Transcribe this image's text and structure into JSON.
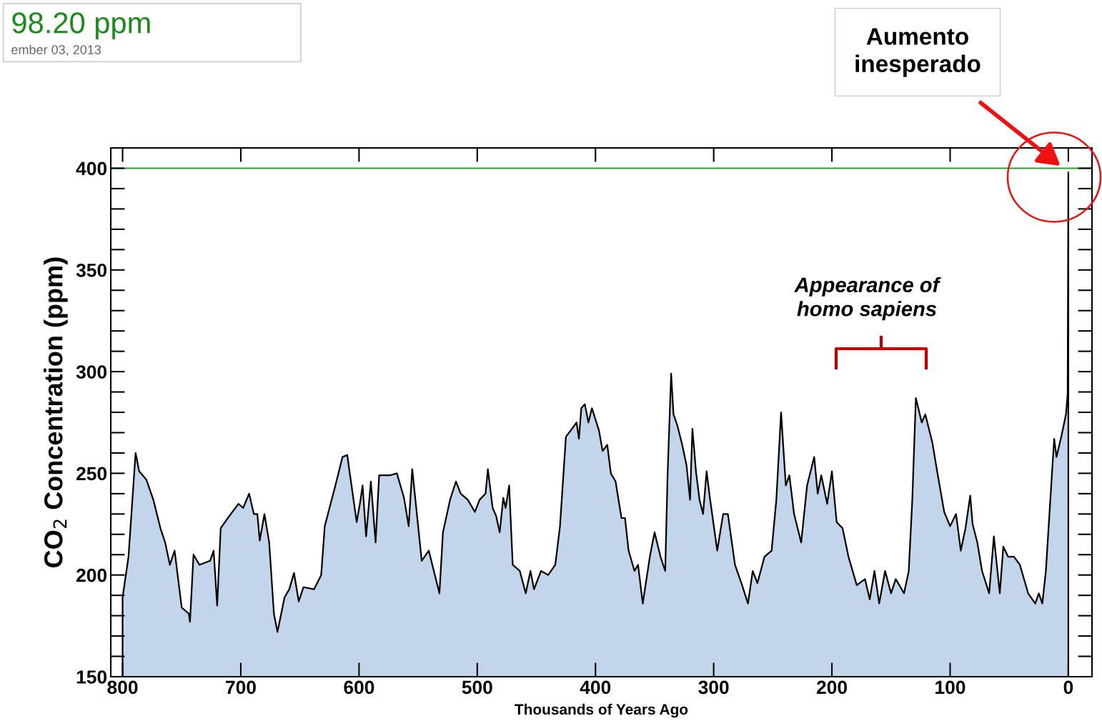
{
  "chart_data": {
    "type": "area",
    "xlabel": "Thousands of Years Ago",
    "ylabel": "CO$_{2}$ Concentration (ppm)",
    "xlim": [
      810,
      -20
    ],
    "xticks": [
      800,
      700,
      600,
      500,
      400,
      300,
      200,
      100,
      0
    ],
    "ylim": [
      150,
      410
    ],
    "yticks": [
      150,
      200,
      250,
      300,
      350,
      400
    ],
    "grid": false,
    "legend": false,
    "series": [
      {
        "color": "#c2d5ea",
        "x": [
          800,
          795,
          789,
          786,
          780,
          774,
          768,
          764,
          760,
          756,
          753,
          750,
          744,
          743,
          740,
          735,
          726,
          723,
          720,
          717,
          711,
          702,
          698,
          693,
          689,
          686,
          684,
          680,
          676,
          672,
          669,
          663,
          659,
          655,
          651,
          647,
          638,
          632,
          629,
          620,
          614,
          610,
          602,
          599,
          597,
          594,
          590,
          586,
          583,
          574,
          568,
          562,
          558,
          555,
          550,
          547,
          541,
          538,
          532,
          529,
          523,
          518,
          514,
          508,
          502,
          498,
          493,
          491,
          487,
          484,
          481,
          478,
          476,
          473,
          470,
          464,
          459,
          455,
          452,
          446,
          440,
          434,
          430,
          425,
          421,
          416,
          414,
          412,
          409,
          406,
          403,
          397,
          394,
          390,
          387,
          383,
          378,
          375,
          372,
          367,
          364,
          360,
          354,
          350,
          345,
          341,
          339,
          336,
          334,
          331,
          327,
          323,
          320,
          318,
          315,
          312,
          309,
          306,
          303,
          297,
          292,
          288,
          282,
          276,
          271,
          267,
          263,
          257,
          251,
          247,
          243,
          239,
          236,
          232,
          226,
          221,
          215,
          212,
          209,
          204,
          200,
          196,
          191,
          186,
          179,
          172,
          168,
          164,
          160,
          155,
          150,
          146,
          139,
          135,
          132,
          129,
          124,
          121,
          118,
          115,
          111,
          105,
          100,
          95,
          91,
          87,
          83,
          81,
          77,
          73,
          67,
          63,
          58,
          55,
          51,
          46,
          41,
          34,
          28,
          25,
          22,
          19,
          16,
          12,
          10,
          6,
          2,
          0.6,
          0
        ],
        "values": [
          189,
          209,
          260,
          251,
          247,
          237,
          223,
          216,
          205,
          212,
          198,
          184,
          181,
          177,
          210,
          205,
          207,
          212,
          185,
          223,
          228,
          235,
          233,
          240,
          230,
          230,
          217,
          230,
          216,
          181,
          172,
          189,
          193,
          201,
          187,
          194,
          193,
          200,
          224,
          244,
          258,
          259,
          226,
          236,
          244,
          219,
          246,
          216,
          249,
          249,
          250,
          238,
          224,
          252,
          224,
          207,
          212,
          205,
          191,
          221,
          237,
          246,
          240,
          237,
          231,
          237,
          240,
          252,
          233,
          229,
          221,
          238,
          233,
          244,
          205,
          202,
          191,
          202,
          193,
          202,
          200,
          205,
          224,
          268,
          271,
          275,
          267,
          282,
          284,
          275,
          282,
          271,
          261,
          264,
          250,
          246,
          228,
          228,
          212,
          202,
          205,
          186,
          209,
          221,
          209,
          202,
          249,
          299,
          279,
          274,
          265,
          254,
          237,
          272,
          251,
          237,
          230,
          251,
          237,
          212,
          230,
          230,
          205,
          195,
          186,
          202,
          196,
          209,
          212,
          237,
          280,
          244,
          249,
          230,
          216,
          244,
          258,
          240,
          249,
          235,
          251,
          226,
          223,
          209,
          195,
          198,
          188,
          202,
          186,
          202,
          191,
          198,
          191,
          202,
          237,
          287,
          275,
          279,
          272,
          265,
          251,
          231,
          224,
          230,
          212,
          223,
          239,
          225,
          216,
          202,
          191,
          219,
          191,
          214,
          209,
          209,
          205,
          191,
          186,
          191,
          186,
          202,
          230,
          267,
          258,
          268,
          279,
          289,
          398
        ]
      }
    ],
    "ref_lines": [
      {
        "axis": "y",
        "value": 400,
        "color": "#2ca02c",
        "line_style": "solid"
      }
    ],
    "annotations": [
      "98.20 ppm",
      "ember 03, 2013",
      "Aumento inesperado",
      "Appearance of homo sapiens"
    ]
  }
}
